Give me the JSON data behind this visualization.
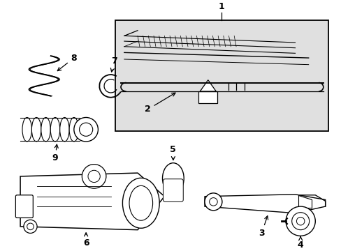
{
  "background_color": "#ffffff",
  "line_color": "#000000",
  "box_fill": "#e0e0e0",
  "figsize": [
    4.89,
    3.6
  ],
  "dpi": 100
}
